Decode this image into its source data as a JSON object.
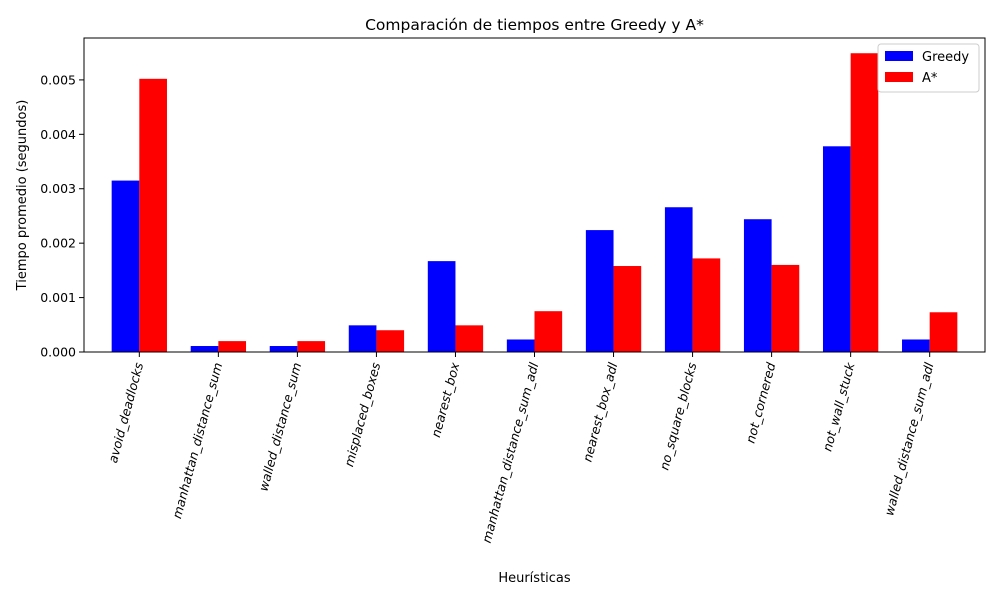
{
  "chart_data": {
    "type": "bar",
    "title": "Comparación de tiempos entre Greedy y A*",
    "xlabel": "Heurísticas",
    "ylabel": "Tiempo promedio (segundos)",
    "categories": [
      "avoid_deadlocks",
      "manhattan_distance_sum",
      "walled_distance_sum",
      "misplaced_boxes",
      "nearest_box",
      "manhattan_distance_sum_adl",
      "nearest_box_adl",
      "no_square_blocks",
      "not_cornered",
      "not_wall_stuck",
      "walled_distance_sum_adl"
    ],
    "series": [
      {
        "name": "Greedy",
        "color": "#0000ff",
        "values": [
          0.00315,
          0.00011,
          0.00011,
          0.00049,
          0.00167,
          0.00023,
          0.00224,
          0.00266,
          0.00244,
          0.00378,
          0.00023
        ]
      },
      {
        "name": "A*",
        "color": "#ff0000",
        "values": [
          0.00502,
          0.0002,
          0.0002,
          0.0004,
          0.00049,
          0.00075,
          0.00158,
          0.00172,
          0.0016,
          0.00549,
          0.00073
        ]
      }
    ],
    "ylim": [
      0,
      0.00577
    ],
    "yticks": [
      "0.000",
      "0.001",
      "0.002",
      "0.003",
      "0.004",
      "0.005"
    ],
    "ytick_values": [
      0,
      0.001,
      0.002,
      0.003,
      0.004,
      0.005
    ],
    "legend": "top-right",
    "grid": false
  }
}
